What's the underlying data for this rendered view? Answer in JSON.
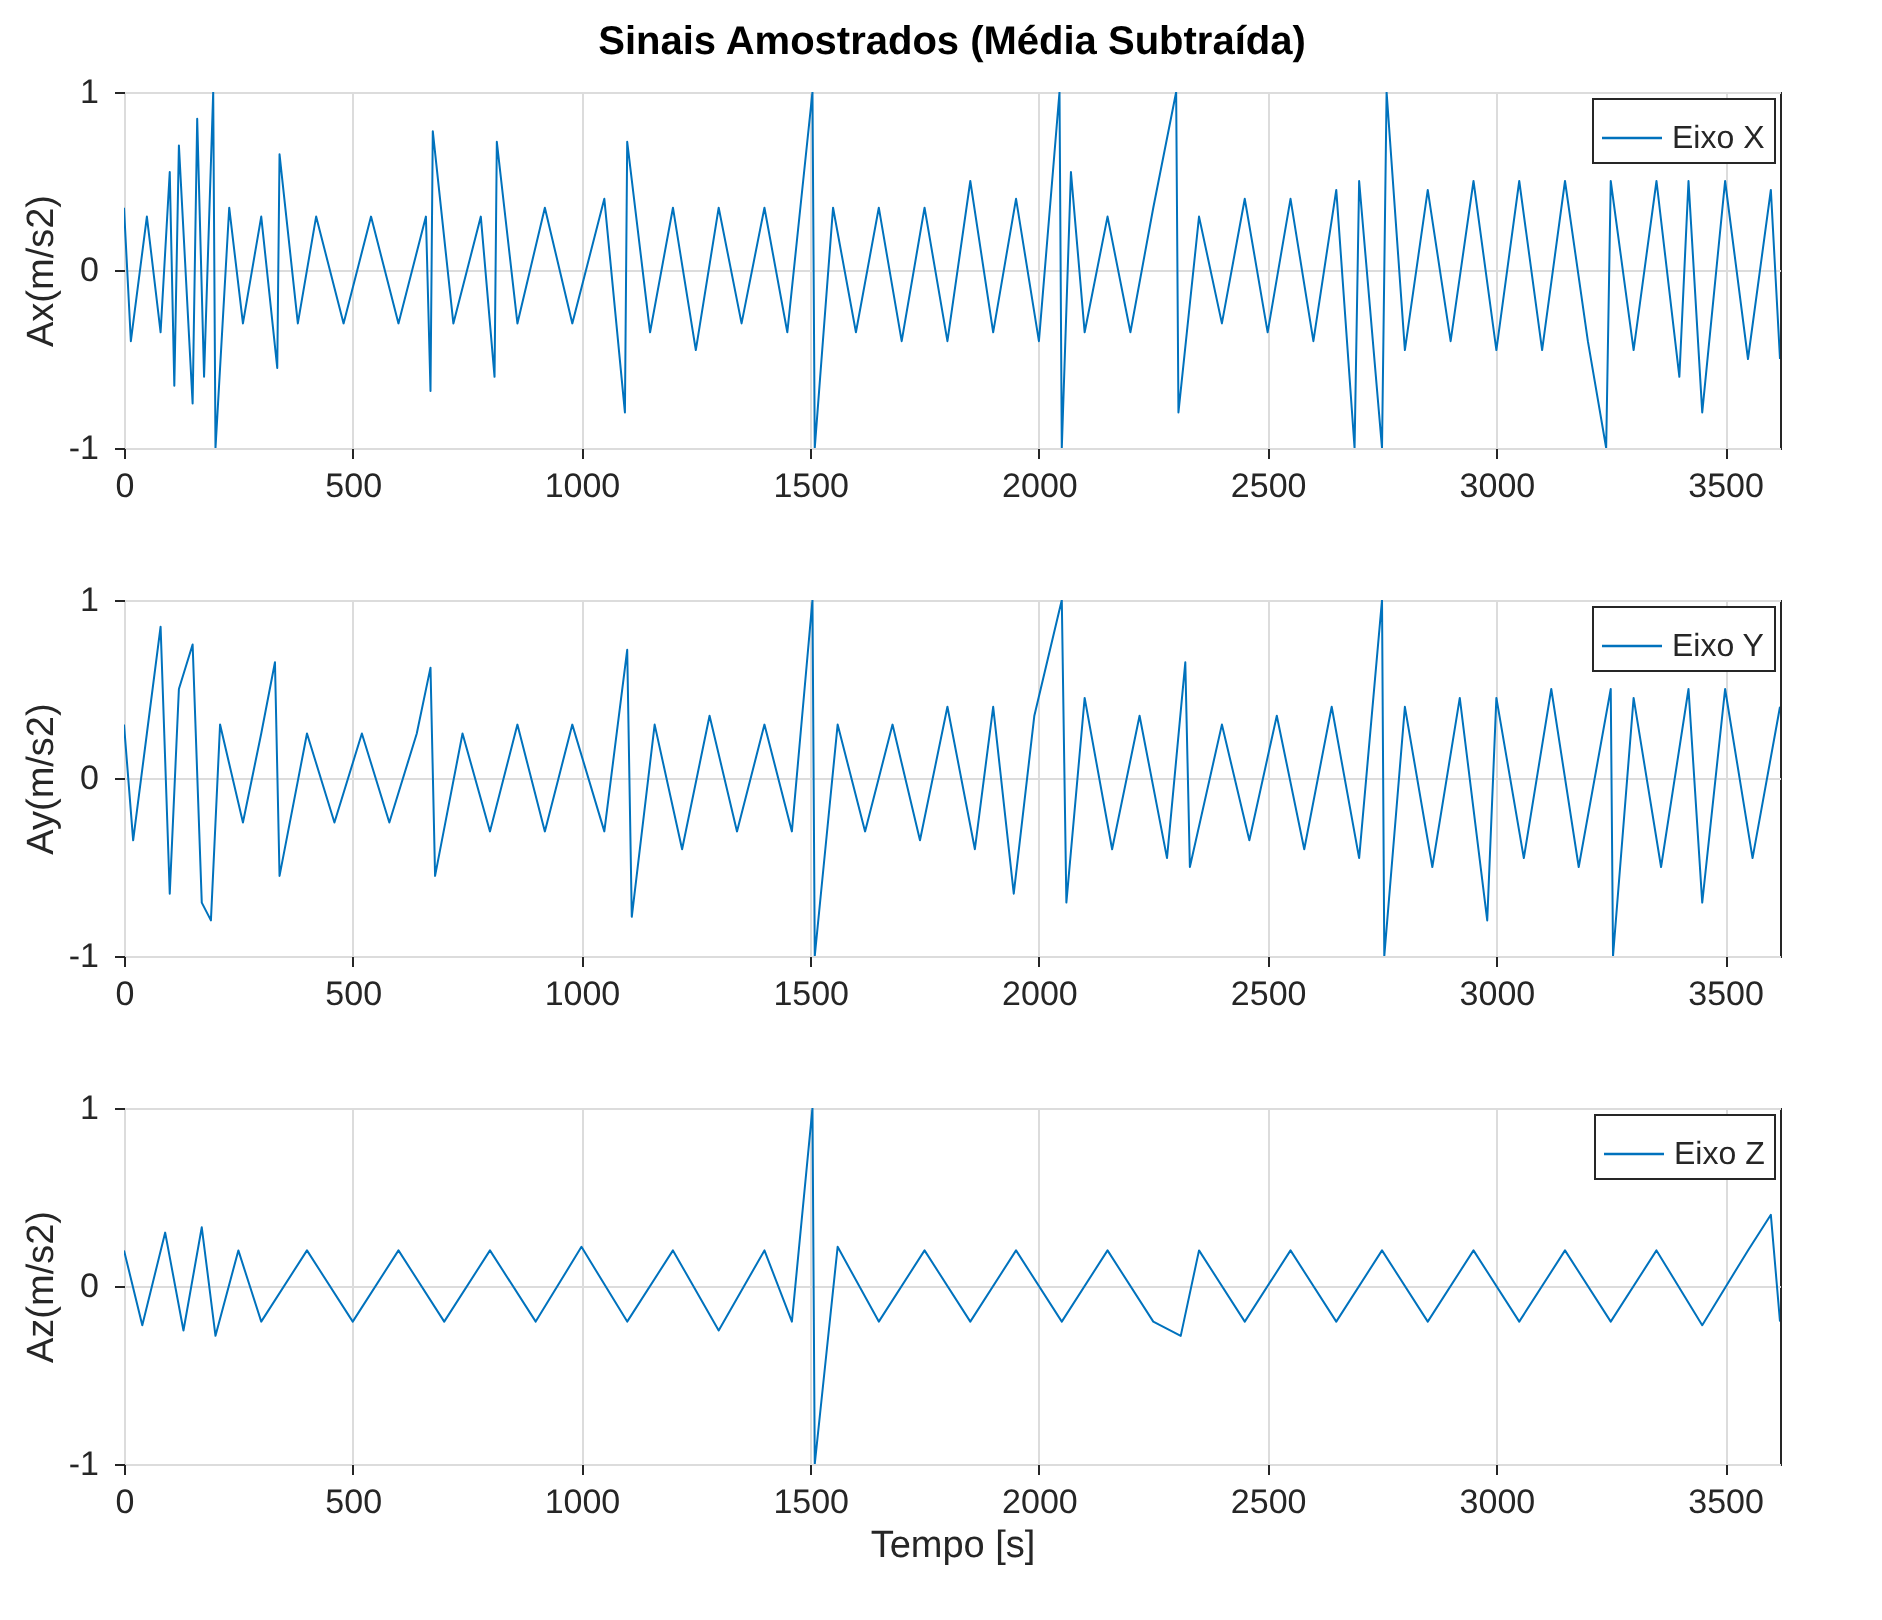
{
  "chart_data": [
    {
      "type": "line",
      "title": "Sinais Amostrados (Média Subtraída)",
      "ylabel": "Ax(m/s2)",
      "xlim": [
        0,
        3620
      ],
      "ylim": [
        -1,
        1
      ],
      "xticks": [
        0,
        500,
        1000,
        1500,
        2000,
        2500,
        3000,
        3500
      ],
      "yticks": [
        -1,
        0,
        1
      ],
      "grid": true,
      "legend": "top right",
      "series": [
        {
          "name": "Eixo X",
          "color": "#0072bd",
          "x": [
            0,
            15,
            50,
            80,
            100,
            110,
            120,
            150,
            160,
            175,
            195,
            200,
            230,
            260,
            300,
            335,
            340,
            380,
            420,
            480,
            540,
            600,
            660,
            670,
            675,
            720,
            780,
            810,
            815,
            860,
            920,
            980,
            1050,
            1095,
            1100,
            1150,
            1200,
            1250,
            1300,
            1350,
            1400,
            1450,
            1505,
            1510,
            1550,
            1600,
            1650,
            1700,
            1750,
            1800,
            1850,
            1900,
            1950,
            2000,
            2045,
            2050,
            2070,
            2100,
            2150,
            2200,
            2250,
            2300,
            2305,
            2350,
            2400,
            2450,
            2500,
            2550,
            2600,
            2650,
            2690,
            2700,
            2750,
            2760,
            2800,
            2850,
            2900,
            2950,
            3000,
            3050,
            3100,
            3150,
            3200,
            3240,
            3250,
            3300,
            3350,
            3400,
            3420,
            3450,
            3500,
            3550,
            3600,
            3620
          ],
          "values": [
            0.35,
            -0.4,
            0.3,
            -0.35,
            0.55,
            -0.65,
            0.7,
            -0.75,
            0.85,
            -0.6,
            1.0,
            -1.0,
            0.35,
            -0.3,
            0.3,
            -0.55,
            0.65,
            -0.3,
            0.3,
            -0.3,
            0.3,
            -0.3,
            0.3,
            -0.68,
            0.78,
            -0.3,
            0.3,
            -0.6,
            0.72,
            -0.3,
            0.35,
            -0.3,
            0.4,
            -0.8,
            0.72,
            -0.35,
            0.35,
            -0.45,
            0.35,
            -0.3,
            0.35,
            -0.35,
            1.0,
            -1.0,
            0.35,
            -0.35,
            0.35,
            -0.4,
            0.35,
            -0.4,
            0.5,
            -0.35,
            0.4,
            -0.4,
            1.0,
            -1.0,
            0.55,
            -0.35,
            0.3,
            -0.35,
            0.35,
            1.0,
            -0.8,
            0.3,
            -0.3,
            0.4,
            -0.35,
            0.4,
            -0.4,
            0.45,
            -1.0,
            0.5,
            -1.0,
            1.0,
            -0.45,
            0.45,
            -0.4,
            0.5,
            -0.45,
            0.5,
            -0.45,
            0.5,
            -0.4,
            -1.0,
            0.5,
            -0.45,
            0.5,
            -0.6,
            0.5,
            -0.8,
            0.5,
            -0.5,
            0.45,
            -0.5
          ]
        }
      ]
    },
    {
      "type": "line",
      "ylabel": "Ay(m/s2)",
      "xlim": [
        0,
        3620
      ],
      "ylim": [
        -1,
        1
      ],
      "xticks": [
        0,
        500,
        1000,
        1500,
        2000,
        2500,
        3000,
        3500
      ],
      "yticks": [
        -1,
        0,
        1
      ],
      "grid": true,
      "legend": "top right",
      "series": [
        {
          "name": "Eixo Y",
          "color": "#0072bd",
          "x": [
            0,
            20,
            50,
            80,
            100,
            120,
            150,
            170,
            190,
            210,
            260,
            300,
            330,
            340,
            400,
            460,
            520,
            580,
            640,
            670,
            680,
            740,
            800,
            860,
            920,
            980,
            1050,
            1100,
            1110,
            1160,
            1220,
            1280,
            1340,
            1400,
            1460,
            1505,
            1510,
            1560,
            1620,
            1680,
            1740,
            1800,
            1860,
            1900,
            1945,
            1990,
            2050,
            2060,
            2100,
            2160,
            2220,
            2280,
            2320,
            2330,
            2400,
            2460,
            2520,
            2580,
            2640,
            2700,
            2750,
            2755,
            2800,
            2860,
            2920,
            2980,
            3000,
            3060,
            3120,
            3180,
            3250,
            3255,
            3300,
            3360,
            3420,
            3450,
            3500,
            3560,
            3620
          ],
          "values": [
            0.3,
            -0.35,
            0.25,
            0.85,
            -0.65,
            0.5,
            0.75,
            -0.7,
            -0.8,
            0.3,
            -0.25,
            0.25,
            0.65,
            -0.55,
            0.25,
            -0.25,
            0.25,
            -0.25,
            0.25,
            0.62,
            -0.55,
            0.25,
            -0.3,
            0.3,
            -0.3,
            0.3,
            -0.3,
            0.72,
            -0.78,
            0.3,
            -0.4,
            0.35,
            -0.3,
            0.3,
            -0.3,
            1.0,
            -1.0,
            0.3,
            -0.3,
            0.3,
            -0.35,
            0.4,
            -0.4,
            0.4,
            -0.65,
            0.35,
            1.0,
            -0.7,
            0.45,
            -0.4,
            0.35,
            -0.45,
            0.65,
            -0.5,
            0.3,
            -0.35,
            0.35,
            -0.4,
            0.4,
            -0.45,
            1.0,
            -1.0,
            0.4,
            -0.5,
            0.45,
            -0.8,
            0.45,
            -0.45,
            0.5,
            -0.5,
            0.5,
            -1.0,
            0.45,
            -0.5,
            0.5,
            -0.7,
            0.5,
            -0.45,
            0.4
          ]
        }
      ]
    },
    {
      "type": "line",
      "ylabel": "Az(m/s2)",
      "xlabel": "Tempo [s]",
      "xlim": [
        0,
        3620
      ],
      "ylim": [
        -1,
        1
      ],
      "xticks": [
        0,
        500,
        1000,
        1500,
        2000,
        2500,
        3000,
        3500
      ],
      "yticks": [
        -1,
        0,
        1
      ],
      "grid": true,
      "legend": "top right",
      "series": [
        {
          "name": "Eixo Z",
          "color": "#0072bd",
          "x": [
            0,
            40,
            90,
            130,
            170,
            200,
            250,
            300,
            400,
            500,
            600,
            700,
            800,
            900,
            1000,
            1100,
            1200,
            1300,
            1400,
            1460,
            1505,
            1510,
            1560,
            1650,
            1750,
            1850,
            1950,
            2050,
            2150,
            2250,
            2310,
            2350,
            2450,
            2550,
            2650,
            2750,
            2850,
            2950,
            3050,
            3150,
            3250,
            3350,
            3450,
            3550,
            3600,
            3620
          ],
          "values": [
            0.2,
            -0.22,
            0.3,
            -0.25,
            0.33,
            -0.28,
            0.2,
            -0.2,
            0.2,
            -0.2,
            0.2,
            -0.2,
            0.2,
            -0.2,
            0.22,
            -0.2,
            0.2,
            -0.25,
            0.2,
            -0.2,
            1.0,
            -1.0,
            0.22,
            -0.2,
            0.2,
            -0.2,
            0.2,
            -0.2,
            0.2,
            -0.2,
            -0.28,
            0.2,
            -0.2,
            0.2,
            -0.2,
            0.2,
            -0.2,
            0.2,
            -0.2,
            0.2,
            -0.2,
            0.2,
            -0.22,
            0.2,
            0.4,
            -0.2
          ]
        }
      ]
    }
  ]
}
